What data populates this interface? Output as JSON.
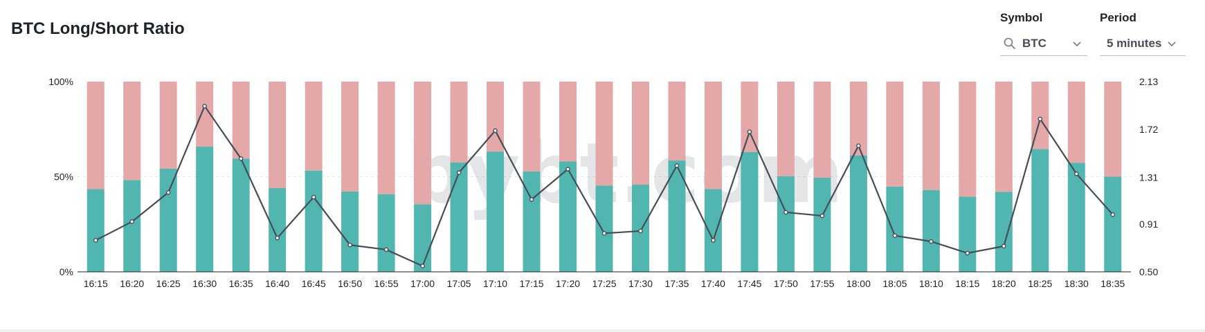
{
  "header": {
    "title": "BTC Long/Short Ratio"
  },
  "controls": {
    "symbol": {
      "label": "Symbol",
      "value": "BTC",
      "icon": "search-icon"
    },
    "period": {
      "label": "Period",
      "value": "5 minutes"
    }
  },
  "watermark": "bybt.com",
  "colors": {
    "long": "#52b6b0",
    "short": "#e5a8a9",
    "ratio_line": "#474d57"
  },
  "chart_data": {
    "type": "bar",
    "stacked": true,
    "categories": [
      "16:15",
      "16:20",
      "16:25",
      "16:30",
      "16:35",
      "16:40",
      "16:45",
      "16:50",
      "16:55",
      "17:00",
      "17:05",
      "17:10",
      "17:15",
      "17:20",
      "17:25",
      "17:30",
      "17:35",
      "17:40",
      "17:45",
      "17:50",
      "17:55",
      "18:00",
      "18:05",
      "18:10",
      "18:15",
      "18:20",
      "18:25",
      "18:30",
      "18:35"
    ],
    "series": [
      {
        "values": [
          43.5,
          48.2,
          54.2,
          65.8,
          59.5,
          44.0,
          53.2,
          42.2,
          40.8,
          35.5,
          57.5,
          63.2,
          52.8,
          58.0,
          45.3,
          45.8,
          58.5,
          43.5,
          63.0,
          50.2,
          49.5,
          61.2,
          44.8,
          43.0,
          39.5,
          42.0,
          64.5,
          57.3,
          50.0
        ]
      },
      {
        "values": [
          56.5,
          51.8,
          45.8,
          34.2,
          40.5,
          56.0,
          46.8,
          57.8,
          59.2,
          64.5,
          42.5,
          36.8,
          47.2,
          42.0,
          54.7,
          54.2,
          41.5,
          56.5,
          37.0,
          49.8,
          50.5,
          38.8,
          55.2,
          57.0,
          60.5,
          58.0,
          35.5,
          42.7,
          50.0
        ]
      },
      {
        "type": "line",
        "axis": "right",
        "values": [
          0.77,
          0.93,
          1.18,
          1.92,
          1.47,
          0.79,
          1.14,
          0.73,
          0.69,
          0.55,
          1.35,
          1.71,
          1.12,
          1.38,
          0.83,
          0.85,
          1.41,
          0.77,
          1.7,
          1.01,
          0.98,
          1.58,
          0.81,
          0.76,
          0.66,
          0.72,
          1.81,
          1.34,
          0.99
        ]
      }
    ],
    "y_left": {
      "ticks": [
        "0%",
        "50%",
        "100%"
      ],
      "range": [
        0,
        100
      ]
    },
    "y_right": {
      "ticks": [
        "0.50",
        "0.91",
        "1.31",
        "1.72",
        "2.13"
      ],
      "range": [
        0.5,
        2.13
      ]
    },
    "grid": true
  }
}
